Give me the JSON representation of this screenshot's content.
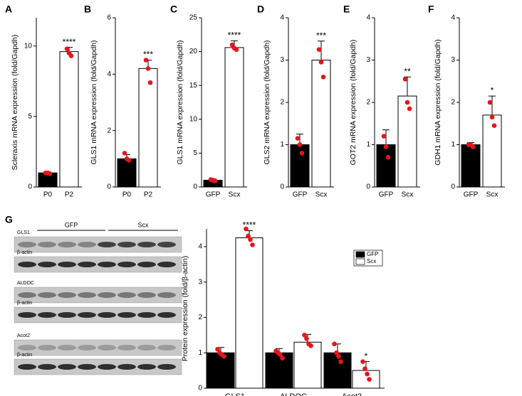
{
  "chart_data": [
    {
      "type": "bar",
      "label": "A",
      "ylabel": "Scleraxis mRNA expression (fold/Gapdh)",
      "categories": [
        "P0",
        "P2"
      ],
      "values": [
        1.0,
        9.6
      ],
      "errors": [
        0.05,
        0.3
      ],
      "points": [
        [
          1.0,
          1.0,
          0.95
        ],
        [
          9.8,
          9.5,
          9.3
        ]
      ],
      "significance": [
        null,
        "****"
      ],
      "colors": [
        "#000000",
        "#ffffff"
      ],
      "point_color": "#e8141b",
      "ylim": [
        0,
        12
      ],
      "yticks": [
        0,
        5,
        10
      ]
    },
    {
      "type": "bar",
      "label": "B",
      "ylabel": "GLS1 mRNA expression (fold/Gapdh)",
      "categories": [
        "P0",
        "P2"
      ],
      "values": [
        1.0,
        4.2
      ],
      "errors": [
        0.15,
        0.3
      ],
      "points": [
        [
          1.2,
          1.0,
          0.95
        ],
        [
          4.5,
          4.2,
          3.7
        ]
      ],
      "significance": [
        null,
        "***"
      ],
      "colors": [
        "#000000",
        "#ffffff"
      ],
      "point_color": "#e8141b",
      "ylim": [
        0,
        6
      ],
      "yticks": [
        0,
        2,
        4,
        6
      ]
    },
    {
      "type": "bar",
      "label": "C",
      "ylabel": "GLS1 mRNA expression (fold/Gapdh)",
      "categories": [
        "GFP",
        "Scx"
      ],
      "values": [
        1.0,
        20.6
      ],
      "errors": [
        0.2,
        1.0
      ],
      "points": [
        [
          1.1,
          1.0,
          0.9
        ],
        [
          21.0,
          20.5,
          20.3
        ]
      ],
      "significance": [
        null,
        "****"
      ],
      "colors": [
        "#000000",
        "#ffffff"
      ],
      "point_color": "#e8141b",
      "ylim": [
        0,
        25
      ],
      "yticks": [
        0,
        5,
        10,
        15,
        20,
        25
      ]
    },
    {
      "type": "bar",
      "label": "D",
      "ylabel": "GLS2 mRNA expression (fold/Gapdh)",
      "categories": [
        "GFP",
        "Scx"
      ],
      "values": [
        1.0,
        3.0
      ],
      "errors": [
        0.25,
        0.45
      ],
      "points": [
        [
          1.15,
          1.0,
          0.8
        ],
        [
          3.25,
          2.95,
          2.6
        ]
      ],
      "significance": [
        null,
        "***"
      ],
      "colors": [
        "#000000",
        "#ffffff"
      ],
      "point_color": "#e8141b",
      "ylim": [
        0,
        4
      ],
      "yticks": [
        0,
        1,
        2,
        3,
        4
      ]
    },
    {
      "type": "bar",
      "label": "E",
      "ylabel": "GOT2 mRNA expression (fold/Gapdh)",
      "categories": [
        "GFP",
        "Scx"
      ],
      "values": [
        1.0,
        2.15
      ],
      "errors": [
        0.35,
        0.45
      ],
      "points": [
        [
          1.2,
          0.95,
          0.7
        ],
        [
          2.55,
          2.0,
          1.85
        ]
      ],
      "significance": [
        null,
        "**"
      ],
      "colors": [
        "#000000",
        "#ffffff"
      ],
      "point_color": "#e8141b",
      "ylim": [
        0,
        4
      ],
      "yticks": [
        0,
        1,
        2,
        3,
        4
      ]
    },
    {
      "type": "bar",
      "label": "F",
      "ylabel": "GDH1 mRNA expression (fold/Gapdh)",
      "categories": [
        "GFP",
        "Scx"
      ],
      "values": [
        1.0,
        1.7
      ],
      "errors": [
        0.05,
        0.45
      ],
      "points": [
        [
          1.0,
          1.0,
          0.95
        ],
        [
          2.0,
          1.65,
          1.45
        ]
      ],
      "significance": [
        null,
        "*"
      ],
      "colors": [
        "#000000",
        "#ffffff"
      ],
      "point_color": "#e8141b",
      "ylim": [
        0,
        4
      ],
      "yticks": [
        0,
        1,
        2,
        3,
        4
      ]
    },
    {
      "type": "grouped_bar",
      "label": "G",
      "ylabel": "Protein expression (fold/β-actin)",
      "categories": [
        "GLS1",
        "ALDOC",
        "Acot2"
      ],
      "point_color": "#e8141b",
      "ylim": [
        0,
        4.5
      ],
      "yticks": [
        0,
        1,
        2,
        3,
        4
      ],
      "series": [
        {
          "name": "GFP",
          "color": "#000000",
          "values": [
            1.0,
            1.0,
            1.0
          ],
          "errors": [
            0.15,
            0.12,
            0.25
          ],
          "points": [
            [
              1.1,
              1.0,
              0.95,
              0.9
            ],
            [
              1.05,
              1.0,
              0.95,
              0.85
            ],
            [
              1.25,
              1.0,
              0.9,
              0.75
            ]
          ],
          "significance": [
            null,
            null,
            null
          ]
        },
        {
          "name": "Scx",
          "color": "#ffffff",
          "values": [
            4.25,
            1.3,
            0.5
          ],
          "errors": [
            0.2,
            0.22,
            0.25
          ],
          "points": [
            [
              4.5,
              4.3,
              4.2,
              4.05
            ],
            [
              1.5,
              1.4,
              1.25,
              1.2
            ],
            [
              0.75,
              0.55,
              0.4,
              0.25
            ]
          ],
          "significance": [
            "****",
            null,
            "*"
          ]
        }
      ]
    }
  ],
  "blot": {
    "groups": [
      "GFP",
      "Scx"
    ],
    "rows": [
      "GLS1",
      "β-actin",
      "ALDOC",
      "β-actin",
      "Acot2",
      "β-actin"
    ]
  }
}
